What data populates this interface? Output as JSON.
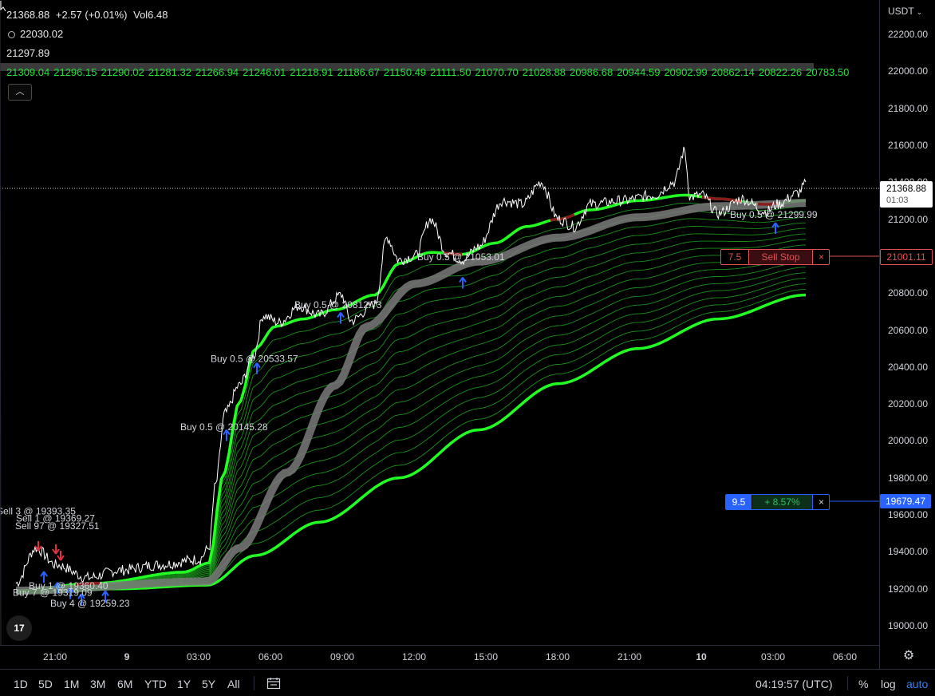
{
  "legend": {
    "price": "21368.88",
    "change": "+2.57 (+0.01%)",
    "volume": "Vol6.48",
    "row2_value": "22030.02",
    "row3_value": "21297.89"
  },
  "ema_values": [
    "21309.04",
    "21296.15",
    "21290.02",
    "21281.32",
    "21266.94",
    "21246.01",
    "21218.91",
    "21186.67",
    "21150.49",
    "21111.50",
    "21070.70",
    "21028.88",
    "20986.68",
    "20944.59",
    "20902.99",
    "20862.14",
    "20822.26",
    "20783.50"
  ],
  "currency": "USDT",
  "price_axis": {
    "ticks": [
      "22200.00",
      "22000.00",
      "21800.00",
      "21600.00",
      "21400.00",
      "21200.00",
      "21000.00",
      "20800.00",
      "20600.00",
      "20400.00",
      "20200.00",
      "20000.00",
      "19800.00",
      "19600.00",
      "19400.00",
      "19200.00",
      "19000.00"
    ],
    "min": 18900,
    "max": 22300
  },
  "time_axis": {
    "ticks": [
      {
        "label": "21:00",
        "bold": false
      },
      {
        "label": "9",
        "bold": true
      },
      {
        "label": "03:00",
        "bold": false
      },
      {
        "label": "06:00",
        "bold": false
      },
      {
        "label": "09:00",
        "bold": false
      },
      {
        "label": "12:00",
        "bold": false
      },
      {
        "label": "15:00",
        "bold": false
      },
      {
        "label": "18:00",
        "bold": false
      },
      {
        "label": "21:00",
        "bold": false
      },
      {
        "label": "10",
        "bold": true
      },
      {
        "label": "03:00",
        "bold": false
      },
      {
        "label": "06:00",
        "bold": false
      }
    ]
  },
  "last_price": {
    "value": "21368.88",
    "countdown": "01:03"
  },
  "sell_stop": {
    "qty": "7.5",
    "label": "Sell Stop",
    "close": "×",
    "price": "21001.11"
  },
  "position": {
    "qty": "9.5",
    "pnl": "+ 8.57%",
    "close": "×",
    "price": "19679.47"
  },
  "trade_labels": [
    {
      "text": "Buy 0.5 @ 21299.99",
      "price": 21225
    },
    {
      "text": "Buy 0.5 @ 21053.01",
      "price": 20995
    },
    {
      "text": "Buy 0.5 @ 20812.73",
      "price": 20735
    },
    {
      "text": "Buy 0.5 @ 20533.57",
      "price": 20445
    },
    {
      "text": "Buy 0.5 @ 20145.28",
      "price": 20075
    },
    {
      "text": "Sell 1 @ 19369.27",
      "price": 19580
    },
    {
      "text": "Sell 97 @ 19327.51",
      "price": 19540
    },
    {
      "text": "Sell 3 @ 19393.35",
      "price": 19620
    },
    {
      "text": "Buy 1 @ 19360.40",
      "price": 19215
    },
    {
      "text": "Buy 7 @ 19319.09",
      "price": 19180
    },
    {
      "text": "Buy 4 @ 19259.23",
      "price": 19120
    }
  ],
  "range_buttons": [
    "1D",
    "5D",
    "1M",
    "3M",
    "6M",
    "YTD",
    "1Y",
    "5Y",
    "All"
  ],
  "clock": "04:19:57 (UTC)",
  "scale_buttons": {
    "percent": "%",
    "log": "log",
    "auto": "auto"
  },
  "colors": {
    "price_line": "#ffffff",
    "ribbon_bright": "#22ff22",
    "ribbon_thin": "#1fa91f",
    "ribbon_gray": "#7a7a7a",
    "ribbon_red": "#8b1a1a",
    "buy_arrow": "#2962ff",
    "sell_arrow": "#e03040",
    "accent_blue": "#2962ff",
    "stop_red": "#e05050"
  },
  "logo_text": "17"
}
